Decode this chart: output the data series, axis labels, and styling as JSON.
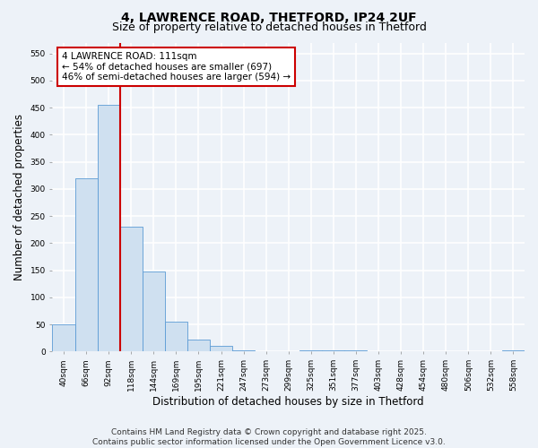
{
  "title_line1": "4, LAWRENCE ROAD, THETFORD, IP24 2UF",
  "title_line2": "Size of property relative to detached houses in Thetford",
  "xlabel": "Distribution of detached houses by size in Thetford",
  "ylabel": "Number of detached properties",
  "categories": [
    "40sqm",
    "66sqm",
    "92sqm",
    "118sqm",
    "144sqm",
    "169sqm",
    "195sqm",
    "221sqm",
    "247sqm",
    "273sqm",
    "299sqm",
    "325sqm",
    "351sqm",
    "377sqm",
    "403sqm",
    "428sqm",
    "454sqm",
    "480sqm",
    "506sqm",
    "532sqm",
    "558sqm"
  ],
  "values": [
    50,
    320,
    455,
    230,
    148,
    55,
    22,
    10,
    3,
    0,
    0,
    2,
    2,
    2,
    0,
    0,
    0,
    0,
    0,
    0,
    2
  ],
  "bar_color": "#cfe0f0",
  "bar_edge_color": "#5b9bd5",
  "bar_edge_width": 0.6,
  "vline_color": "#cc0000",
  "vline_x_index": 2.5,
  "annotation_text": "4 LAWRENCE ROAD: 111sqm\n← 54% of detached houses are smaller (697)\n46% of semi-detached houses are larger (594) →",
  "annotation_box_color": "white",
  "annotation_box_edge_color": "#cc0000",
  "ylim": [
    0,
    570
  ],
  "yticks": [
    0,
    50,
    100,
    150,
    200,
    250,
    300,
    350,
    400,
    450,
    500,
    550
  ],
  "background_color": "#edf2f8",
  "grid_color": "white",
  "footer_text": "Contains HM Land Registry data © Crown copyright and database right 2025.\nContains public sector information licensed under the Open Government Licence v3.0.",
  "title_fontsize": 10,
  "subtitle_fontsize": 9,
  "tick_fontsize": 6.5,
  "label_fontsize": 8.5,
  "annotation_fontsize": 7.5,
  "footer_fontsize": 6.5
}
